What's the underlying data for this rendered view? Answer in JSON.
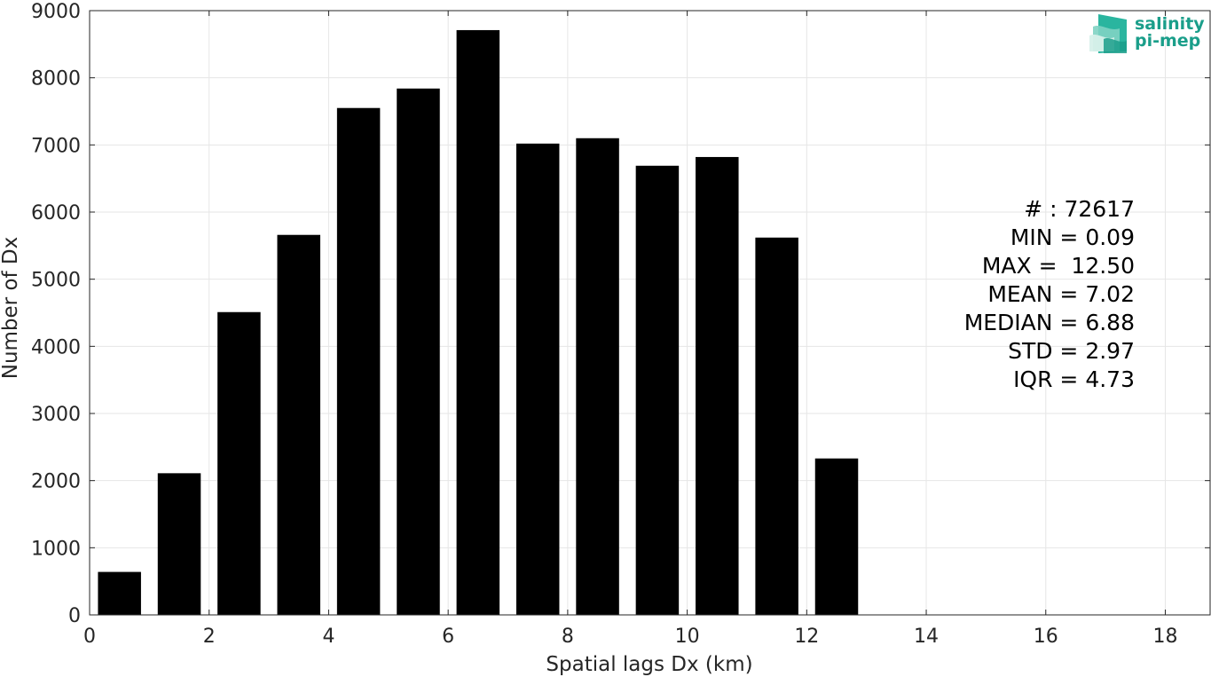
{
  "chart_data": {
    "type": "bar",
    "title": "",
    "xlabel": "Spatial lags Dx (km)",
    "ylabel": "Number of Dx",
    "xlim": [
      0,
      18.75
    ],
    "ylim": [
      0,
      9000
    ],
    "xticks": [
      0,
      2,
      4,
      6,
      8,
      10,
      12,
      14,
      16,
      18
    ],
    "yticks": [
      0,
      1000,
      2000,
      3000,
      4000,
      5000,
      6000,
      7000,
      8000,
      9000
    ],
    "grid": true,
    "x": [
      0.5,
      1.5,
      2.5,
      3.5,
      4.5,
      5.5,
      6.5,
      7.5,
      8.5,
      9.5,
      10.5,
      11.5,
      12.5
    ],
    "values": [
      640,
      2110,
      4510,
      5660,
      7550,
      7840,
      8710,
      7020,
      7100,
      6690,
      6820,
      5620,
      2330
    ],
    "bar_color": "#000000",
    "stats": [
      "# : 72617",
      "MIN = 0.09",
      "MAX =  12.50",
      "MEAN = 7.02",
      "MEDIAN = 6.88",
      "STD = 2.97",
      "IQR = 4.73"
    ]
  },
  "logo": {
    "line1": "salinity",
    "line2": "pi-mep",
    "color": "#1a9e8a"
  }
}
